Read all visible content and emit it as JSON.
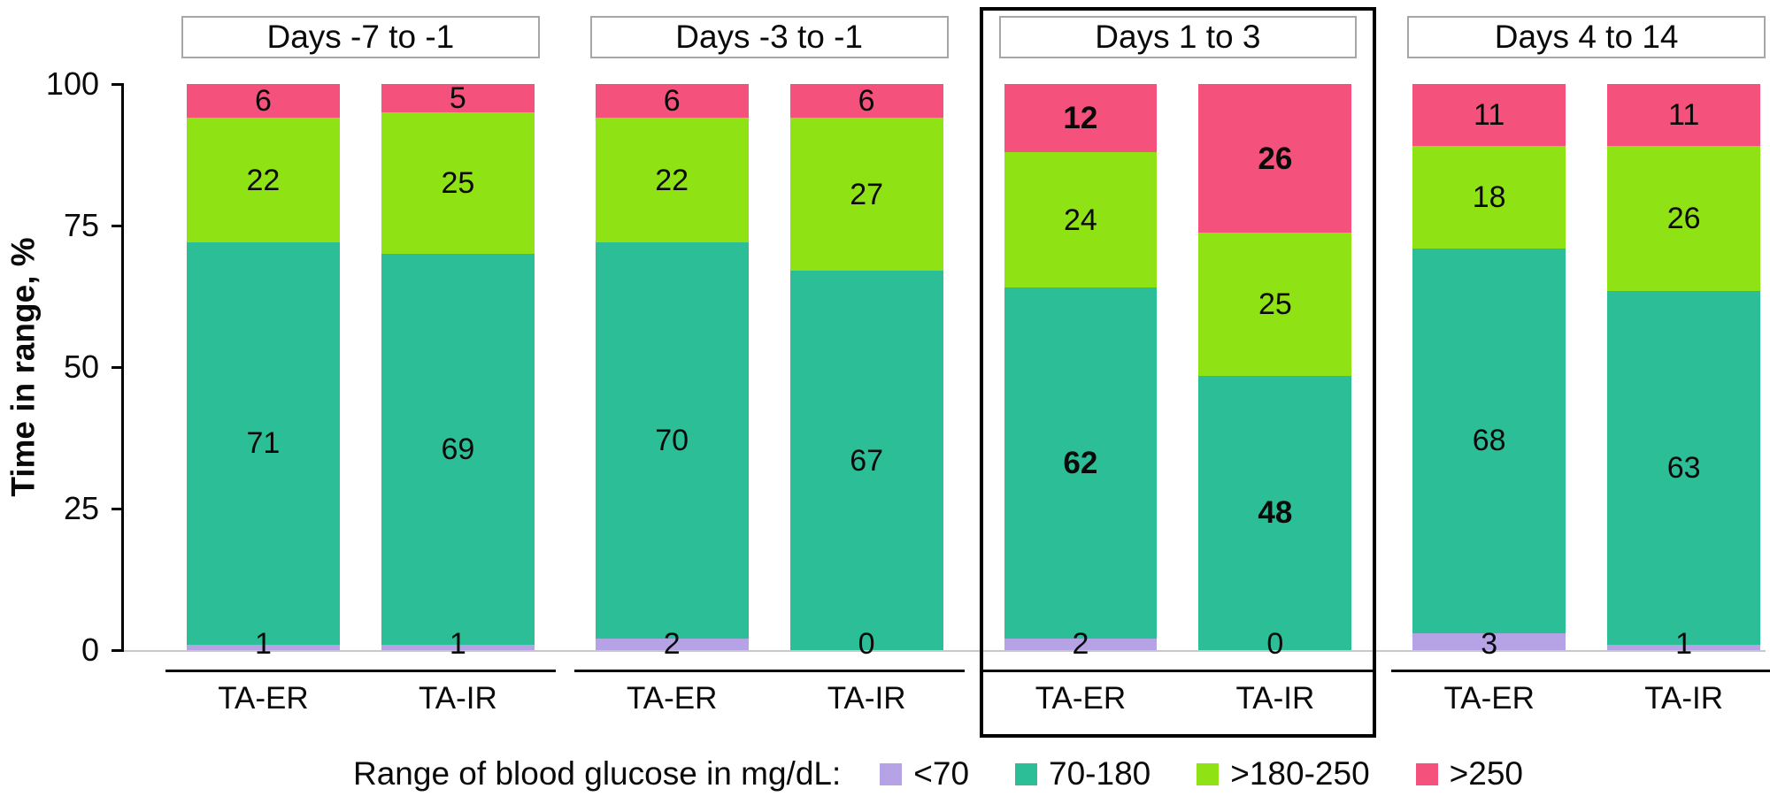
{
  "chart_data": {
    "type": "bar",
    "stacked": true,
    "title": "",
    "xlabel": "",
    "ylabel": "Time in range, %",
    "ylim": [
      0,
      100
    ],
    "yticks": [
      0,
      25,
      50,
      75,
      100
    ],
    "grid": false,
    "legend_position": "bottom",
    "segments": [
      "<70",
      "70-180",
      ">180-250",
      ">250"
    ],
    "segment_colors": [
      "#B5A3E6",
      "#2CBE96",
      "#8FE214",
      "#F4517C"
    ],
    "groups": [
      {
        "label": "Days -7 to -1",
        "highlighted": false,
        "bars": [
          {
            "label": "TA-ER",
            "values": [
              1,
              71,
              22,
              6
            ],
            "bold": [
              false,
              false,
              false,
              false
            ]
          },
          {
            "label": "TA-IR",
            "values": [
              1,
              69,
              25,
              5
            ],
            "bold": [
              false,
              false,
              false,
              false
            ]
          }
        ]
      },
      {
        "label": "Days -3 to -1",
        "highlighted": false,
        "bars": [
          {
            "label": "TA-ER",
            "values": [
              2,
              70,
              22,
              6
            ],
            "bold": [
              false,
              false,
              false,
              false
            ]
          },
          {
            "label": "TA-IR",
            "values": [
              0,
              67,
              27,
              6
            ],
            "bold": [
              false,
              false,
              false,
              false
            ]
          }
        ]
      },
      {
        "label": "Days 1 to 3",
        "highlighted": true,
        "bars": [
          {
            "label": "TA-ER",
            "values": [
              2,
              62,
              24,
              12
            ],
            "bold": [
              false,
              true,
              false,
              true
            ]
          },
          {
            "label": "TA-IR",
            "values": [
              0,
              48,
              25,
              26
            ],
            "bold": [
              false,
              true,
              false,
              true
            ]
          }
        ]
      },
      {
        "label": "Days 4 to 14",
        "highlighted": false,
        "bars": [
          {
            "label": "TA-ER",
            "values": [
              3,
              68,
              18,
              11
            ],
            "bold": [
              false,
              false,
              false,
              false
            ]
          },
          {
            "label": "TA-IR",
            "values": [
              1,
              63,
              26,
              11
            ],
            "bold": [
              false,
              false,
              false,
              false
            ]
          }
        ]
      }
    ],
    "legend": {
      "title": "Range of blood glucose in mg/dL:",
      "entries": [
        "<70",
        "70-180",
        ">180-250",
        ">250"
      ]
    }
  }
}
